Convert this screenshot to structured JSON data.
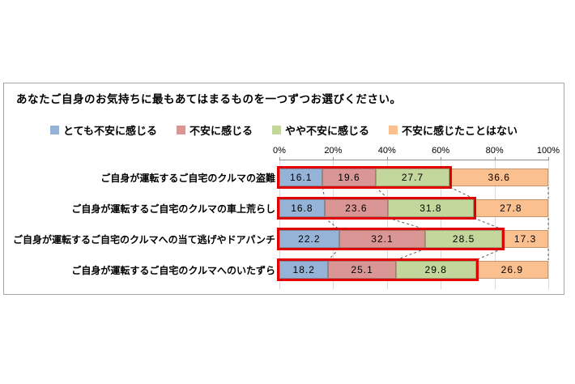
{
  "question": "あなたご自身のお気持ちに最もあてはまるものを一つずつお選びください。",
  "chart_data": {
    "type": "bar",
    "stacked": true,
    "orientation": "horizontal",
    "title": "あなたご自身のお気持ちに最もあてはまるものを一つずつお選びください。",
    "categories": [
      "ご自身が運転するご自宅のクルマの盗難",
      "ご自身が運転するご自宅のクルマの車上荒らし",
      "ご自身が運転するご自宅のクルマへの当て逃げやドアパンチ",
      "ご自身が運転するご自宅のクルマへのいたずら"
    ],
    "series": [
      {
        "name": "とても不安に感じる",
        "color": "#95b3d7",
        "values": [
          16.1,
          16.8,
          22.2,
          18.2
        ]
      },
      {
        "name": "不安に感じる",
        "color": "#d99694",
        "values": [
          19.6,
          23.6,
          32.1,
          25.1
        ]
      },
      {
        "name": "やや不安に感じる",
        "color": "#c3d69b",
        "values": [
          27.7,
          31.8,
          28.5,
          29.8
        ]
      },
      {
        "name": "不安に感じたことはない",
        "color": "#fac08f",
        "values": [
          36.6,
          27.8,
          17.3,
          26.9
        ]
      }
    ],
    "x_ticks": [
      "0%",
      "20%",
      "40%",
      "60%",
      "80%",
      "100%"
    ],
    "xlim": [
      0,
      100
    ],
    "legend_position": "top",
    "grid": true,
    "highlight": {
      "description": "red box around first three series of each bar",
      "series_count": 3,
      "border_color": "#e00000"
    },
    "connector_lines": "dashed lines linking series boundaries between adjacent bars"
  }
}
